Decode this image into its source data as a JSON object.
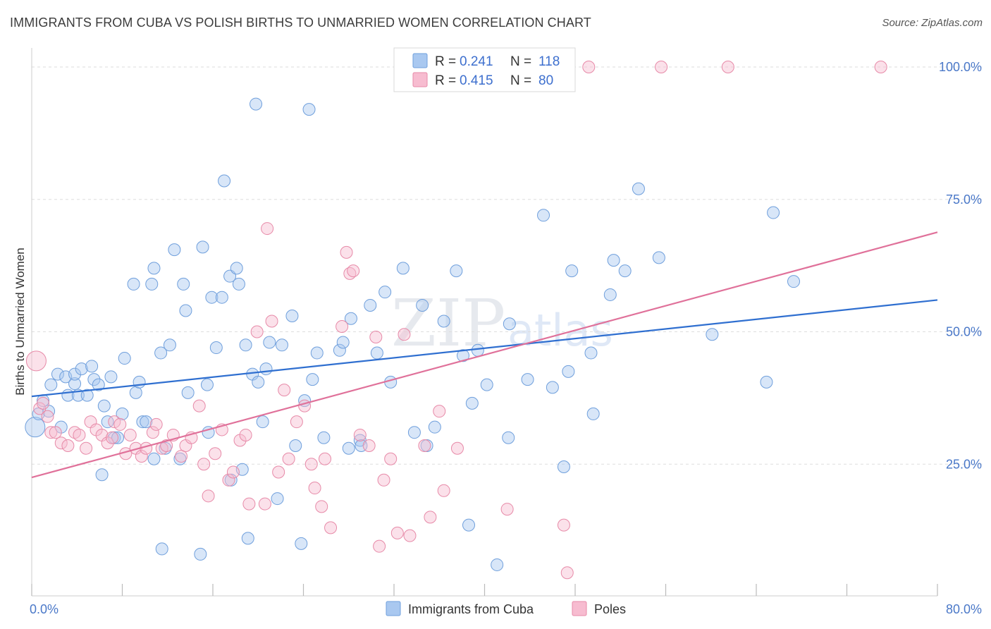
{
  "header": {
    "title": "IMMIGRANTS FROM CUBA VS POLISH BIRTHS TO UNMARRIED WOMEN CORRELATION CHART",
    "source": "Source: ZipAtlas.com"
  },
  "watermark": {
    "zip": "ZIP",
    "atlas": "atlas"
  },
  "colors": {
    "blue": "#a9c8f0",
    "blue_stroke": "#6f9fdc",
    "blue_line": "#2f6fd0",
    "pink": "#f7bcd0",
    "pink_stroke": "#e78aa8",
    "pink_line": "#e0719a",
    "tick": "#4a78c8",
    "grid": "#dddddd"
  },
  "chart_data": {
    "type": "scatter",
    "title": "IMMIGRANTS FROM CUBA VS POLISH BIRTHS TO UNMARRIED WOMEN CORRELATION CHART",
    "xlabel": "",
    "ylabel": "Births to Unmarried Women",
    "xlim": [
      0,
      80
    ],
    "ylim": [
      0,
      102
    ],
    "x_tick_labels": [
      "0.0%",
      "80.0%"
    ],
    "y_ticks": [
      25,
      50,
      75,
      100
    ],
    "y_tick_labels": [
      "25.0%",
      "50.0%",
      "75.0%",
      "100.0%"
    ],
    "grid": true,
    "legend": {
      "position": "top-center",
      "entries": [
        {
          "r_label": "R = ",
          "r_value": "0.241",
          "n_label": "N = ",
          "n_value": "118"
        },
        {
          "r_label": "R = ",
          "r_value": "0.415",
          "n_label": "N = ",
          "n_value": "80"
        }
      ]
    },
    "series": [
      {
        "name": "Immigrants from Cuba",
        "color": "#a9c8f0",
        "trend": {
          "x": [
            0,
            80
          ],
          "y": [
            37.8,
            56.0
          ]
        },
        "points": [
          [
            0.3,
            32.0
          ],
          [
            0.6,
            34.5
          ],
          [
            1.0,
            37.0
          ],
          [
            1.5,
            35.0
          ],
          [
            1.7,
            40.0
          ],
          [
            2.3,
            42.0
          ],
          [
            2.6,
            32.0
          ],
          [
            3.0,
            41.5
          ],
          [
            3.2,
            38.0
          ],
          [
            3.8,
            40.2
          ],
          [
            3.8,
            42.0
          ],
          [
            4.1,
            38.0
          ],
          [
            4.4,
            43.0
          ],
          [
            4.9,
            38.0
          ],
          [
            5.3,
            43.5
          ],
          [
            5.5,
            41.0
          ],
          [
            5.9,
            40.0
          ],
          [
            6.2,
            23.0
          ],
          [
            6.4,
            36.0
          ],
          [
            6.7,
            33.0
          ],
          [
            7.0,
            41.5
          ],
          [
            7.3,
            30.0
          ],
          [
            7.6,
            30.0
          ],
          [
            8.0,
            34.5
          ],
          [
            8.2,
            45.0
          ],
          [
            9.0,
            59.0
          ],
          [
            9.2,
            38.5
          ],
          [
            9.5,
            40.5
          ],
          [
            9.8,
            33.0
          ],
          [
            10.1,
            33.0
          ],
          [
            10.6,
            59.0
          ],
          [
            10.8,
            26.0
          ],
          [
            10.8,
            62.0
          ],
          [
            11.4,
            46.0
          ],
          [
            11.5,
            9.0
          ],
          [
            11.8,
            28.0
          ],
          [
            12.2,
            47.5
          ],
          [
            12.6,
            65.5
          ],
          [
            13.1,
            26.0
          ],
          [
            13.4,
            59.0
          ],
          [
            13.6,
            54.0
          ],
          [
            13.8,
            38.5
          ],
          [
            14.9,
            8.0
          ],
          [
            15.1,
            66.0
          ],
          [
            15.5,
            40.0
          ],
          [
            15.6,
            31.0
          ],
          [
            15.9,
            56.5
          ],
          [
            16.3,
            47.0
          ],
          [
            16.8,
            56.5
          ],
          [
            17.0,
            78.5
          ],
          [
            17.5,
            60.5
          ],
          [
            17.6,
            22.0
          ],
          [
            18.1,
            62.0
          ],
          [
            18.3,
            59.0
          ],
          [
            18.6,
            24.0
          ],
          [
            18.9,
            47.5
          ],
          [
            19.1,
            11.0
          ],
          [
            19.5,
            42.0
          ],
          [
            19.8,
            93.0
          ],
          [
            20.0,
            40.5
          ],
          [
            20.4,
            33.0
          ],
          [
            20.7,
            43.0
          ],
          [
            21.0,
            48.0
          ],
          [
            21.7,
            18.5
          ],
          [
            22.1,
            47.5
          ],
          [
            23.0,
            53.0
          ],
          [
            23.3,
            28.5
          ],
          [
            23.8,
            10.0
          ],
          [
            24.1,
            37.0
          ],
          [
            24.5,
            92.0
          ],
          [
            24.8,
            41.0
          ],
          [
            25.2,
            46.0
          ],
          [
            25.8,
            30.0
          ],
          [
            27.2,
            46.5
          ],
          [
            27.5,
            48.0
          ],
          [
            28.0,
            28.0
          ],
          [
            28.2,
            52.5
          ],
          [
            29.0,
            29.5
          ],
          [
            29.1,
            28.5
          ],
          [
            29.9,
            55.0
          ],
          [
            30.5,
            46.0
          ],
          [
            31.2,
            57.5
          ],
          [
            31.7,
            40.5
          ],
          [
            32.8,
            62.0
          ],
          [
            33.8,
            31.0
          ],
          [
            34.5,
            55.0
          ],
          [
            34.9,
            28.5
          ],
          [
            35.6,
            32.0
          ],
          [
            36.4,
            52.0
          ],
          [
            37.5,
            61.5
          ],
          [
            38.1,
            45.5
          ],
          [
            38.6,
            13.5
          ],
          [
            38.9,
            36.5
          ],
          [
            39.4,
            46.5
          ],
          [
            40.2,
            40.0
          ],
          [
            41.1,
            6.0
          ],
          [
            42.1,
            30.0
          ],
          [
            42.2,
            51.5
          ],
          [
            43.8,
            41.0
          ],
          [
            45.2,
            72.0
          ],
          [
            46.0,
            39.5
          ],
          [
            47.0,
            24.5
          ],
          [
            47.4,
            42.5
          ],
          [
            47.7,
            61.5
          ],
          [
            49.4,
            46.0
          ],
          [
            49.6,
            34.5
          ],
          [
            51.1,
            57.0
          ],
          [
            51.4,
            63.5
          ],
          [
            52.4,
            61.5
          ],
          [
            53.6,
            77.0
          ],
          [
            55.4,
            64.0
          ],
          [
            60.1,
            49.5
          ],
          [
            64.9,
            40.5
          ],
          [
            65.5,
            72.5
          ],
          [
            67.3,
            59.5
          ]
        ]
      },
      {
        "name": "Poles",
        "color": "#f7bcd0",
        "trend": {
          "x": [
            0,
            80
          ],
          "y": [
            22.5,
            68.8
          ]
        },
        "points": [
          [
            0.4,
            44.5
          ],
          [
            0.7,
            35.5
          ],
          [
            1.0,
            36.5
          ],
          [
            1.4,
            34.0
          ],
          [
            1.7,
            31.0
          ],
          [
            2.1,
            31.0
          ],
          [
            2.6,
            29.0
          ],
          [
            3.2,
            28.5
          ],
          [
            3.8,
            31.0
          ],
          [
            4.2,
            30.5
          ],
          [
            4.8,
            28.0
          ],
          [
            5.2,
            33.0
          ],
          [
            5.7,
            31.5
          ],
          [
            6.2,
            30.5
          ],
          [
            6.7,
            29.0
          ],
          [
            7.1,
            30.0
          ],
          [
            7.3,
            33.0
          ],
          [
            7.8,
            32.5
          ],
          [
            8.3,
            27.0
          ],
          [
            8.7,
            30.5
          ],
          [
            9.2,
            28.0
          ],
          [
            9.7,
            26.5
          ],
          [
            10.1,
            28.0
          ],
          [
            10.7,
            31.0
          ],
          [
            11.0,
            32.5
          ],
          [
            11.5,
            28.0
          ],
          [
            11.9,
            28.5
          ],
          [
            12.5,
            30.5
          ],
          [
            13.2,
            26.5
          ],
          [
            13.6,
            28.5
          ],
          [
            14.1,
            30.0
          ],
          [
            14.8,
            36.0
          ],
          [
            15.2,
            25.0
          ],
          [
            15.6,
            19.0
          ],
          [
            16.2,
            27.0
          ],
          [
            16.8,
            31.5
          ],
          [
            17.4,
            22.0
          ],
          [
            17.8,
            23.5
          ],
          [
            18.4,
            29.5
          ],
          [
            18.9,
            30.5
          ],
          [
            19.2,
            17.5
          ],
          [
            19.9,
            50.0
          ],
          [
            20.6,
            17.5
          ],
          [
            20.8,
            69.5
          ],
          [
            21.2,
            52.0
          ],
          [
            21.8,
            23.5
          ],
          [
            22.3,
            39.0
          ],
          [
            22.7,
            26.0
          ],
          [
            23.4,
            33.0
          ],
          [
            24.1,
            36.0
          ],
          [
            24.7,
            25.0
          ],
          [
            25.0,
            20.5
          ],
          [
            25.6,
            17.0
          ],
          [
            25.9,
            26.0
          ],
          [
            26.4,
            13.0
          ],
          [
            27.4,
            51.0
          ],
          [
            27.8,
            65.0
          ],
          [
            28.1,
            61.0
          ],
          [
            28.4,
            61.5
          ],
          [
            29.0,
            30.5
          ],
          [
            29.8,
            28.5
          ],
          [
            30.4,
            49.0
          ],
          [
            30.7,
            9.5
          ],
          [
            31.1,
            22.0
          ],
          [
            31.7,
            26.0
          ],
          [
            32.3,
            12.0
          ],
          [
            32.9,
            49.5
          ],
          [
            33.4,
            11.5
          ],
          [
            34.7,
            28.5
          ],
          [
            35.2,
            15.0
          ],
          [
            36.0,
            35.0
          ],
          [
            36.4,
            20.0
          ],
          [
            37.6,
            28.0
          ],
          [
            42.0,
            16.5
          ],
          [
            47.0,
            13.5
          ],
          [
            47.3,
            4.5
          ],
          [
            49.2,
            100.0
          ],
          [
            55.6,
            100.0
          ],
          [
            61.5,
            100.0
          ],
          [
            75.0,
            100.0
          ]
        ]
      }
    ]
  }
}
